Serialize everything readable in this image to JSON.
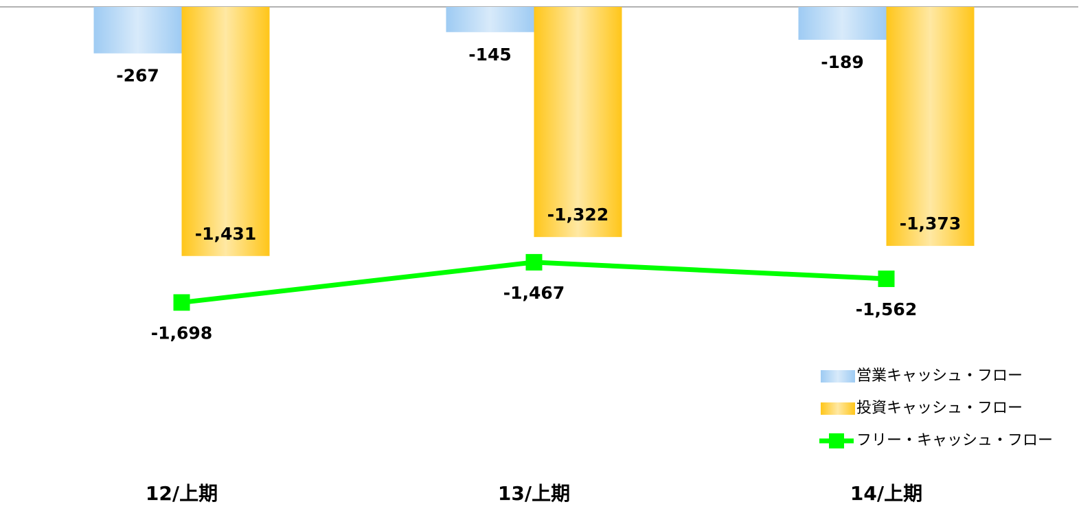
{
  "chart_data": {
    "type": "bar",
    "categories": [
      "12/上期",
      "13/上期",
      "14/上期"
    ],
    "ylim": [
      -2000,
      0
    ],
    "series": [
      {
        "name": "営業キャッシュ・フロー",
        "type": "bar",
        "color": "#9ecbf3",
        "values": [
          -267,
          -145,
          -189
        ],
        "value_labels": [
          "-267",
          "-145",
          "-189"
        ]
      },
      {
        "name": "投資キャッシュ・フロー",
        "type": "bar",
        "color": "#ffc61a",
        "values": [
          -1431,
          -1322,
          -1373
        ],
        "value_labels": [
          "-1,431",
          "-1,322",
          "-1,373"
        ]
      },
      {
        "name": "フリー・キャッシュ・フロー",
        "type": "line",
        "color": "#00ff00",
        "values": [
          -1698,
          -1467,
          -1562
        ],
        "value_labels": [
          "-1,698",
          "-1,467",
          "-1,562"
        ]
      }
    ]
  }
}
